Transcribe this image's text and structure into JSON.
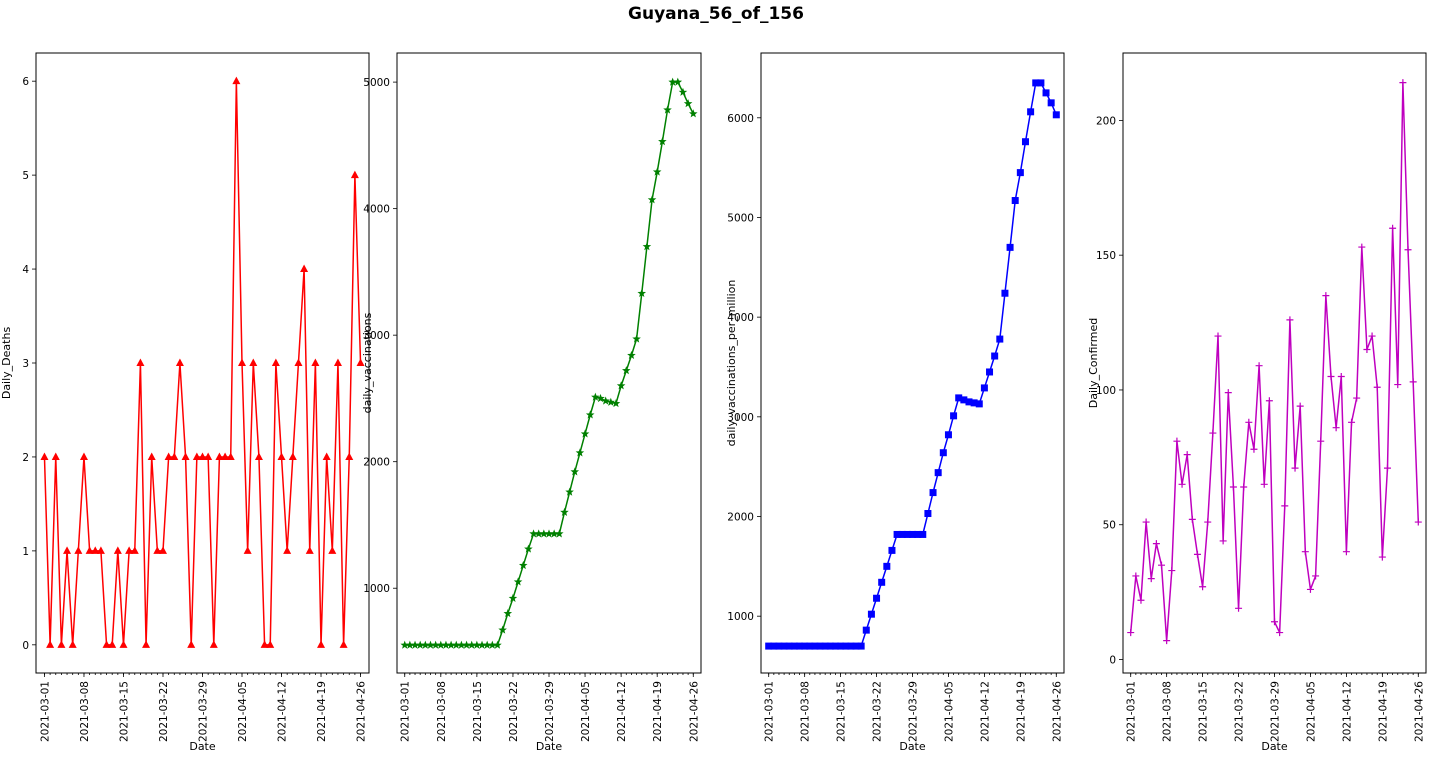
{
  "figure": {
    "title": "Guyana_56_of_156"
  },
  "chart_data": [
    {
      "type": "line",
      "color": "#ff0000",
      "marker": "triangle",
      "xlabel": "Date",
      "ylabel": "Daily_Deaths",
      "start_date": "2021-03-01",
      "xticks": [
        "2021-03-01",
        "2021-03-08",
        "2021-03-15",
        "2021-03-22",
        "2021-03-29",
        "2021-04-05",
        "2021-04-12",
        "2021-04-19",
        "2021-04-26"
      ],
      "yticks": [
        "0",
        "1",
        "2",
        "3",
        "4",
        "5",
        "6"
      ],
      "ylim": [
        -0.3,
        6.3
      ],
      "values": [
        2,
        0,
        2,
        0,
        1,
        0,
        1,
        2,
        1,
        1,
        1,
        0,
        0,
        1,
        0,
        1,
        1,
        3,
        0,
        2,
        1,
        1,
        2,
        2,
        3,
        2,
        0,
        2,
        2,
        2,
        0,
        2,
        2,
        2,
        6,
        3,
        1,
        3,
        2,
        0,
        0,
        3,
        2,
        1,
        2,
        3,
        4,
        1,
        3,
        0,
        2,
        1,
        3,
        0,
        2,
        5,
        3
      ]
    },
    {
      "type": "line",
      "color": "#008000",
      "marker": "star",
      "xlabel": "Date",
      "ylabel": "daily_vaccinations",
      "start_date": "2021-03-01",
      "xticks": [
        "2021-03-01",
        "2021-03-08",
        "2021-03-15",
        "2021-03-22",
        "2021-03-29",
        "2021-04-05",
        "2021-04-12",
        "2021-04-19",
        "2021-04-26"
      ],
      "yticks": [
        "1000",
        "2000",
        "3000",
        "4000",
        "5000"
      ],
      "ylim": [
        330,
        5230
      ],
      "values": [
        550,
        550,
        550,
        550,
        550,
        550,
        550,
        550,
        550,
        550,
        550,
        550,
        550,
        550,
        550,
        550,
        550,
        550,
        550,
        670,
        800,
        920,
        1050,
        1180,
        1310,
        1430,
        1430,
        1430,
        1430,
        1430,
        1430,
        1600,
        1760,
        1920,
        2070,
        2220,
        2370,
        2510,
        2500,
        2480,
        2470,
        2460,
        2600,
        2720,
        2840,
        2970,
        3330,
        3700,
        4070,
        4290,
        4530,
        4780,
        5000,
        5000,
        4920,
        4830,
        4750
      ]
    },
    {
      "type": "line",
      "color": "#0000ff",
      "marker": "square",
      "xlabel": "Date",
      "ylabel": "daily_vaccinations_per_million",
      "start_date": "2021-03-01",
      "xticks": [
        "2021-03-01",
        "2021-03-08",
        "2021-03-15",
        "2021-03-22",
        "2021-03-29",
        "2021-04-05",
        "2021-04-12",
        "2021-04-19",
        "2021-04-26"
      ],
      "yticks": [
        "1000",
        "2000",
        "3000",
        "4000",
        "5000",
        "6000"
      ],
      "ylim": [
        430,
        6650
      ],
      "values": [
        700,
        700,
        700,
        700,
        700,
        700,
        700,
        700,
        700,
        700,
        700,
        700,
        700,
        700,
        700,
        700,
        700,
        700,
        700,
        860,
        1020,
        1180,
        1340,
        1500,
        1660,
        1820,
        1820,
        1820,
        1820,
        1820,
        1820,
        2030,
        2240,
        2440,
        2640,
        2820,
        3010,
        3190,
        3170,
        3150,
        3140,
        3130,
        3290,
        3450,
        3610,
        3780,
        4240,
        4700,
        5170,
        5450,
        5760,
        6060,
        6350,
        6350,
        6250,
        6150,
        6030
      ]
    },
    {
      "type": "line",
      "color": "#bf00bf",
      "marker": "plus",
      "xlabel": "Date",
      "ylabel": "Daily_Confirmed",
      "start_date": "2021-03-01",
      "xticks": [
        "2021-03-01",
        "2021-03-08",
        "2021-03-15",
        "2021-03-22",
        "2021-03-29",
        "2021-04-05",
        "2021-04-12",
        "2021-04-19",
        "2021-04-26"
      ],
      "yticks": [
        "0",
        "50",
        "100",
        "150",
        "200"
      ],
      "ylim": [
        -5,
        225
      ],
      "values": [
        10,
        31,
        22,
        51,
        30,
        43,
        35,
        7,
        33,
        81,
        65,
        76,
        52,
        39,
        27,
        51,
        84,
        120,
        44,
        99,
        64,
        19,
        64,
        88,
        78,
        109,
        65,
        96,
        14,
        10,
        57,
        126,
        71,
        94,
        40,
        26,
        31,
        81,
        135,
        105,
        86,
        105,
        40,
        88,
        97,
        153,
        115,
        120,
        101,
        38,
        71,
        160,
        102,
        214,
        152,
        103,
        51
      ]
    }
  ]
}
